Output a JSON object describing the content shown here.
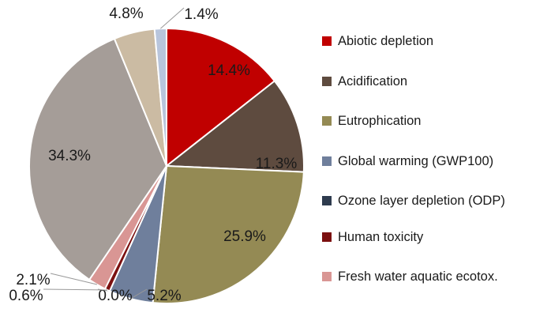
{
  "chart_data": {
    "type": "pie",
    "categories": [
      "Abiotic depletion",
      "Acidification",
      "Eutrophication",
      "Global warming (GWP100)",
      "Ozone layer depletion (ODP)",
      "Human toxicity",
      "Fresh water aquatic ecotox.",
      null,
      null,
      null
    ],
    "values": [
      14.4,
      11.3,
      25.9,
      5.2,
      0.0,
      0.6,
      2.1,
      34.3,
      4.8,
      1.4
    ],
    "value_labels": [
      "14.4%",
      "11.3%",
      "25.9%",
      "5.2%",
      "0.0%",
      "0.6%",
      "2.1%",
      "34.3%",
      "4.8%",
      "1.4%"
    ],
    "colors": [
      "#c00000",
      "#5e4b3f",
      "#948a54",
      "#6f7f9c",
      "#2e3b4e",
      "#7b1010",
      "#d99694",
      "#a59d98",
      "#cbbba3",
      "#b8c5dc"
    ]
  }
}
